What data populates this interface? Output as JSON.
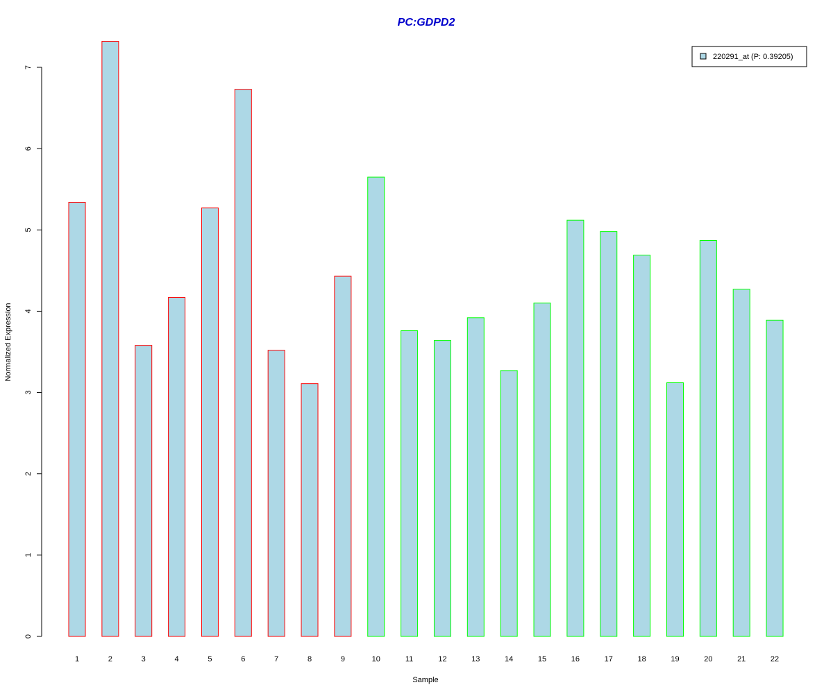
{
  "chart_data": {
    "type": "bar",
    "title": "PC:GDPD2",
    "xlabel": "Sample",
    "ylabel": "Normalized Expression",
    "categories": [
      "1",
      "2",
      "3",
      "4",
      "5",
      "6",
      "7",
      "8",
      "9",
      "10",
      "11",
      "12",
      "13",
      "14",
      "15",
      "16",
      "17",
      "18",
      "19",
      "20",
      "21",
      "22"
    ],
    "series": [
      {
        "name": "220291_at (P: 0.39205)",
        "values": [
          5.34,
          7.32,
          3.58,
          4.17,
          5.27,
          6.73,
          3.52,
          3.11,
          4.43,
          5.65,
          3.76,
          3.64,
          3.92,
          3.27,
          4.1,
          5.12,
          4.98,
          4.69,
          3.12,
          4.87,
          4.27,
          3.89
        ]
      }
    ],
    "bar_fill": "#add8e6",
    "border_colors": [
      "#ff0000",
      "#ff0000",
      "#ff0000",
      "#ff0000",
      "#ff0000",
      "#ff0000",
      "#ff0000",
      "#ff0000",
      "#ff0000",
      "#00ff00",
      "#00ff00",
      "#00ff00",
      "#00ff00",
      "#00ff00",
      "#00ff00",
      "#00ff00",
      "#00ff00",
      "#00ff00",
      "#00ff00",
      "#00ff00",
      "#00ff00",
      "#00ff00"
    ],
    "title_color": "#0000cc",
    "yticks": [
      0,
      1,
      2,
      3,
      4,
      5,
      6,
      7
    ],
    "ylim": [
      0,
      7.32
    ],
    "grid": false,
    "legend_position": "top-right"
  }
}
